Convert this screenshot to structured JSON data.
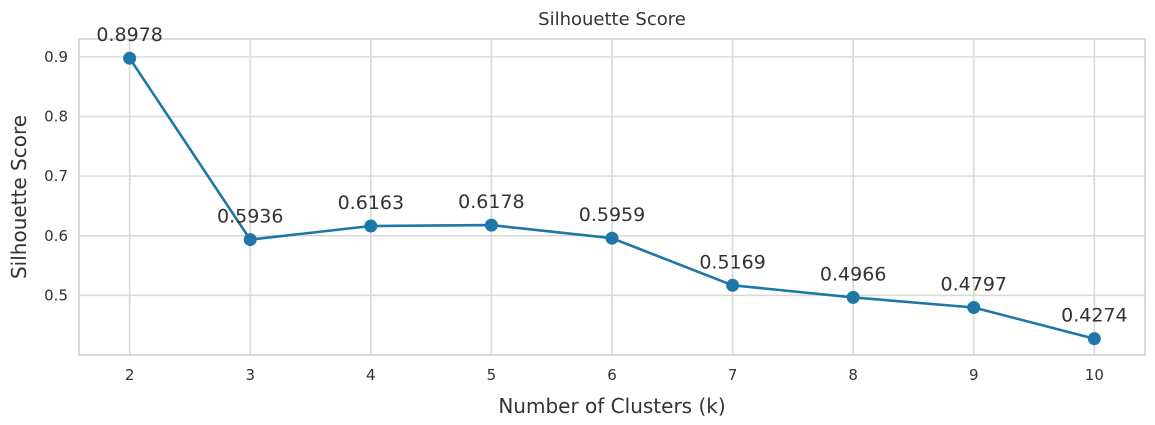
{
  "chart_data": {
    "type": "line",
    "title": "Silhouette Score",
    "xlabel": "Number of Clusters (k)",
    "ylabel": "Silhouette Score",
    "x": [
      2,
      3,
      4,
      5,
      6,
      7,
      8,
      9,
      10
    ],
    "series": [
      {
        "values": [
          0.8978,
          0.5936,
          0.6163,
          0.6178,
          0.5959,
          0.5169,
          0.4966,
          0.4797,
          0.4274
        ],
        "labels": [
          "0.8978",
          "0.5936",
          "0.6163",
          "0.6178",
          "0.5959",
          "0.5169",
          "0.4966",
          "0.4797",
          "0.4274"
        ],
        "color": "#1f77a8"
      }
    ],
    "xticks": [
      "2",
      "3",
      "4",
      "5",
      "6",
      "7",
      "8",
      "9",
      "10"
    ],
    "yticks": [
      0.5,
      0.6,
      0.7,
      0.8,
      0.9
    ],
    "ytick_labels": [
      "0.5",
      "0.6",
      "0.7",
      "0.8",
      "0.9"
    ],
    "xlim": [
      1.58,
      10.42
    ],
    "ylim": [
      0.4,
      0.93
    ],
    "grid": true,
    "markers": true
  }
}
